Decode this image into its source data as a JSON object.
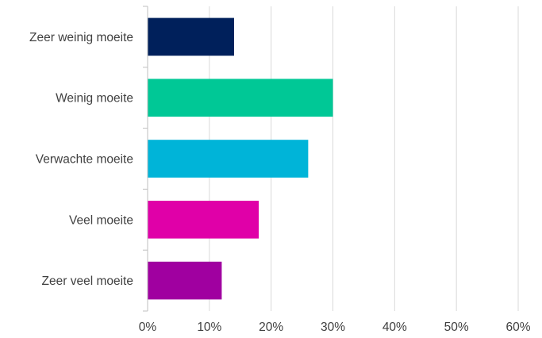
{
  "chart_data": {
    "type": "bar",
    "orientation": "horizontal",
    "categories": [
      "Zeer weinig moeite",
      "Weinig moeite",
      "Verwachte moeite",
      "Veel moeite",
      "Zeer veel moeite"
    ],
    "values": [
      14,
      30,
      26,
      18,
      12
    ],
    "bar_colors": [
      "#00205b",
      "#00c896",
      "#00b4d8",
      "#e000a8",
      "#a000a0"
    ],
    "xlim": [
      0,
      60
    ],
    "x_ticks": [
      0,
      10,
      20,
      30,
      40,
      50,
      60
    ],
    "x_tick_labels": [
      "0%",
      "10%",
      "20%",
      "30%",
      "40%",
      "50%",
      "60%"
    ],
    "grid": "vertical",
    "legend": "none"
  }
}
